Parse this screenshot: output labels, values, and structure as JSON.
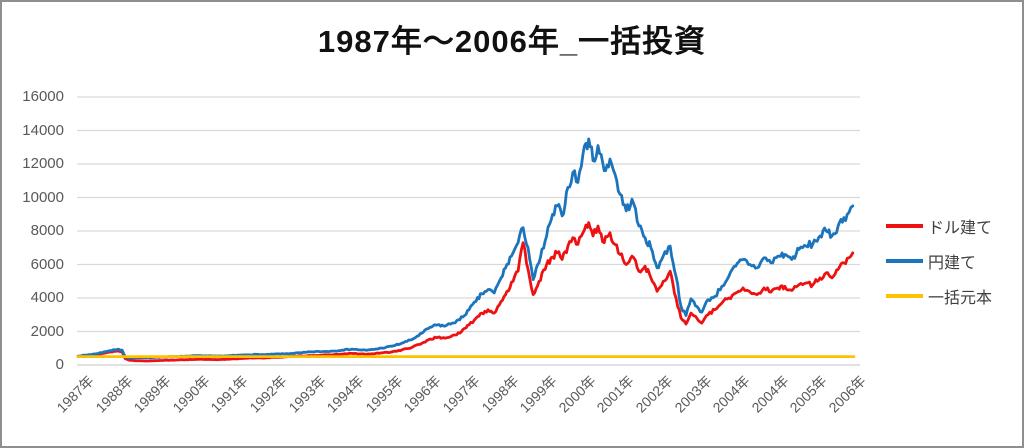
{
  "title": "1987年〜2006年_一括投資",
  "colors": {
    "dollar": "#ed1111",
    "yen": "#1b74bc",
    "principal": "#ffc000",
    "grid": "#d9d9d9",
    "axis_line": "#cfcfcf",
    "axis_labels": "#595959",
    "legend_text": "#404040",
    "title_text": "#111111",
    "border": "#8e8e8e"
  },
  "chart_data": {
    "type": "line",
    "title": "1987年〜2006年_一括投資",
    "xlabel": "",
    "ylabel": "",
    "ylim": [
      0,
      16000
    ],
    "grid": "horizontal",
    "legend_position": "right",
    "y_ticks": [
      0,
      2000,
      4000,
      6000,
      8000,
      10000,
      12000,
      14000,
      16000
    ],
    "x_tick_labels": [
      "1987年",
      "1988年",
      "1989年",
      "1990年",
      "1991年",
      "1992年",
      "1993年",
      "1994年",
      "1995年",
      "1996年",
      "1997年",
      "1998年",
      "1999年",
      "2000年",
      "2001年",
      "2002年",
      "2003年",
      "2004年",
      "2004年",
      "2005年",
      "2006年"
    ],
    "series": [
      {
        "name": "ドル建て",
        "color": "#ed1111",
        "width": 2.8,
        "jitter_pct": 0.032,
        "seed": 13,
        "points": [
          [
            -0.05,
            510
          ],
          [
            0.26,
            580
          ],
          [
            0.44,
            630
          ],
          [
            0.62,
            700
          ],
          [
            0.78,
            780
          ],
          [
            0.96,
            830
          ],
          [
            1.09,
            800
          ],
          [
            1.17,
            380
          ],
          [
            1.27,
            290
          ],
          [
            1.48,
            260
          ],
          [
            1.74,
            240
          ],
          [
            1.99,
            265
          ],
          [
            2.25,
            285
          ],
          [
            2.51,
            300
          ],
          [
            2.77,
            320
          ],
          [
            3.03,
            340
          ],
          [
            3.29,
            330
          ],
          [
            3.55,
            315
          ],
          [
            3.78,
            340
          ],
          [
            4.02,
            370
          ],
          [
            4.27,
            400
          ],
          [
            4.59,
            430
          ],
          [
            4.79,
            420
          ],
          [
            5.03,
            460
          ],
          [
            5.28,
            480
          ],
          [
            5.49,
            510
          ],
          [
            5.75,
            540
          ],
          [
            6.01,
            570
          ],
          [
            6.27,
            580
          ],
          [
            6.53,
            610
          ],
          [
            6.79,
            650
          ],
          [
            7.05,
            690
          ],
          [
            7.25,
            660
          ],
          [
            7.43,
            640
          ],
          [
            7.64,
            680
          ],
          [
            7.82,
            720
          ],
          [
            8.08,
            780
          ],
          [
            8.34,
            900
          ],
          [
            8.6,
            1050
          ],
          [
            8.86,
            1300
          ],
          [
            9.07,
            1550
          ],
          [
            9.27,
            1650
          ],
          [
            9.46,
            1600
          ],
          [
            9.64,
            1750
          ],
          [
            9.84,
            1900
          ],
          [
            10.08,
            2400
          ],
          [
            10.26,
            2800
          ],
          [
            10.41,
            3100
          ],
          [
            10.57,
            3300
          ],
          [
            10.73,
            3100
          ],
          [
            10.91,
            3800
          ],
          [
            11.06,
            4400
          ],
          [
            11.22,
            5000
          ],
          [
            11.35,
            5600
          ],
          [
            11.48,
            7300
          ],
          [
            11.61,
            5700
          ],
          [
            11.74,
            4200
          ],
          [
            11.89,
            5000
          ],
          [
            12.05,
            5700
          ],
          [
            12.2,
            6400
          ],
          [
            12.36,
            6700
          ],
          [
            12.49,
            6300
          ],
          [
            12.64,
            7100
          ],
          [
            12.77,
            7600
          ],
          [
            12.9,
            7200
          ],
          [
            13.03,
            7900
          ],
          [
            13.18,
            8500
          ],
          [
            13.29,
            7700
          ],
          [
            13.42,
            8300
          ],
          [
            13.58,
            7300
          ],
          [
            13.73,
            7900
          ],
          [
            13.86,
            7200
          ],
          [
            13.99,
            6600
          ],
          [
            14.15,
            6000
          ],
          [
            14.3,
            6500
          ],
          [
            14.48,
            5600
          ],
          [
            14.64,
            5900
          ],
          [
            14.79,
            5200
          ],
          [
            14.95,
            4400
          ],
          [
            15.11,
            5000
          ],
          [
            15.29,
            5600
          ],
          [
            15.44,
            4000
          ],
          [
            15.57,
            2800
          ],
          [
            15.7,
            2450
          ],
          [
            15.83,
            3100
          ],
          [
            15.98,
            2800
          ],
          [
            16.11,
            2500
          ],
          [
            16.27,
            3000
          ],
          [
            16.45,
            3300
          ],
          [
            16.63,
            3700
          ],
          [
            16.81,
            4000
          ],
          [
            16.99,
            4300
          ],
          [
            17.18,
            4600
          ],
          [
            17.36,
            4350
          ],
          [
            17.54,
            4200
          ],
          [
            17.72,
            4600
          ],
          [
            17.9,
            4350
          ],
          [
            18.08,
            4600
          ],
          [
            18.26,
            4700
          ],
          [
            18.44,
            4450
          ],
          [
            18.63,
            4800
          ],
          [
            18.81,
            4900
          ],
          [
            18.99,
            4800
          ],
          [
            19.17,
            5200
          ],
          [
            19.33,
            5500
          ],
          [
            19.48,
            5200
          ],
          [
            19.64,
            5700
          ],
          [
            19.79,
            6100
          ],
          [
            19.92,
            6400
          ],
          [
            20.02,
            6700
          ]
        ]
      },
      {
        "name": "円建て",
        "color": "#1b74bc",
        "width": 2.8,
        "jitter_pct": 0.032,
        "seed": 7,
        "points": [
          [
            -0.05,
            530
          ],
          [
            0.26,
            620
          ],
          [
            0.44,
            680
          ],
          [
            0.62,
            780
          ],
          [
            0.78,
            860
          ],
          [
            0.96,
            930
          ],
          [
            1.09,
            890
          ],
          [
            1.17,
            500
          ],
          [
            1.27,
            420
          ],
          [
            1.48,
            440
          ],
          [
            1.74,
            430
          ],
          [
            1.99,
            470
          ],
          [
            2.25,
            480
          ],
          [
            2.51,
            510
          ],
          [
            2.77,
            530
          ],
          [
            3.03,
            555
          ],
          [
            3.29,
            540
          ],
          [
            3.55,
            525
          ],
          [
            3.78,
            545
          ],
          [
            4.02,
            570
          ],
          [
            4.27,
            600
          ],
          [
            4.59,
            630
          ],
          [
            4.79,
            615
          ],
          [
            5.03,
            650
          ],
          [
            5.28,
            665
          ],
          [
            5.49,
            690
          ],
          [
            5.75,
            730
          ],
          [
            6.01,
            790
          ],
          [
            6.27,
            800
          ],
          [
            6.53,
            830
          ],
          [
            6.79,
            890
          ],
          [
            7.05,
            950
          ],
          [
            7.25,
            900
          ],
          [
            7.43,
            880
          ],
          [
            7.64,
            940
          ],
          [
            7.82,
            1010
          ],
          [
            8.08,
            1120
          ],
          [
            8.34,
            1300
          ],
          [
            8.6,
            1520
          ],
          [
            8.86,
            1900
          ],
          [
            9.07,
            2250
          ],
          [
            9.27,
            2400
          ],
          [
            9.46,
            2320
          ],
          [
            9.64,
            2500
          ],
          [
            9.84,
            2700
          ],
          [
            10.08,
            3300
          ],
          [
            10.26,
            3800
          ],
          [
            10.41,
            4250
          ],
          [
            10.57,
            4500
          ],
          [
            10.73,
            4300
          ],
          [
            10.91,
            5200
          ],
          [
            11.06,
            6000
          ],
          [
            11.22,
            6700
          ],
          [
            11.35,
            7300
          ],
          [
            11.48,
            8200
          ],
          [
            11.61,
            7000
          ],
          [
            11.74,
            5100
          ],
          [
            11.89,
            6100
          ],
          [
            12.05,
            7400
          ],
          [
            12.2,
            8600
          ],
          [
            12.36,
            9500
          ],
          [
            12.49,
            8900
          ],
          [
            12.64,
            10600
          ],
          [
            12.77,
            11500
          ],
          [
            12.9,
            10900
          ],
          [
            13.03,
            12600
          ],
          [
            13.18,
            13500
          ],
          [
            13.29,
            12200
          ],
          [
            13.42,
            13100
          ],
          [
            13.58,
            11600
          ],
          [
            13.73,
            12300
          ],
          [
            13.86,
            11400
          ],
          [
            13.99,
            10200
          ],
          [
            14.15,
            9200
          ],
          [
            14.3,
            9900
          ],
          [
            14.48,
            8300
          ],
          [
            14.64,
            7600
          ],
          [
            14.79,
            7000
          ],
          [
            14.95,
            5800
          ],
          [
            15.11,
            6500
          ],
          [
            15.29,
            7100
          ],
          [
            15.44,
            5300
          ],
          [
            15.57,
            3500
          ],
          [
            15.7,
            2950
          ],
          [
            15.83,
            3950
          ],
          [
            15.98,
            3500
          ],
          [
            16.11,
            3150
          ],
          [
            16.27,
            3900
          ],
          [
            16.45,
            4100
          ],
          [
            16.63,
            4700
          ],
          [
            16.81,
            5300
          ],
          [
            16.99,
            5900
          ],
          [
            17.18,
            6300
          ],
          [
            17.36,
            6000
          ],
          [
            17.54,
            5800
          ],
          [
            17.72,
            6400
          ],
          [
            17.9,
            6100
          ],
          [
            18.08,
            6500
          ],
          [
            18.26,
            6600
          ],
          [
            18.44,
            6300
          ],
          [
            18.63,
            6900
          ],
          [
            18.81,
            7100
          ],
          [
            18.99,
            7250
          ],
          [
            19.17,
            7700
          ],
          [
            19.33,
            8000
          ],
          [
            19.48,
            7700
          ],
          [
            19.64,
            8300
          ],
          [
            19.79,
            8800
          ],
          [
            19.92,
            9100
          ],
          [
            20.02,
            9500
          ]
        ]
      },
      {
        "name": "一括元本",
        "color": "#ffc000",
        "width": 2.8,
        "jitter_pct": 0,
        "seed": 1,
        "points": [
          [
            -0.05,
            500
          ],
          [
            20.05,
            500
          ]
        ]
      }
    ]
  }
}
